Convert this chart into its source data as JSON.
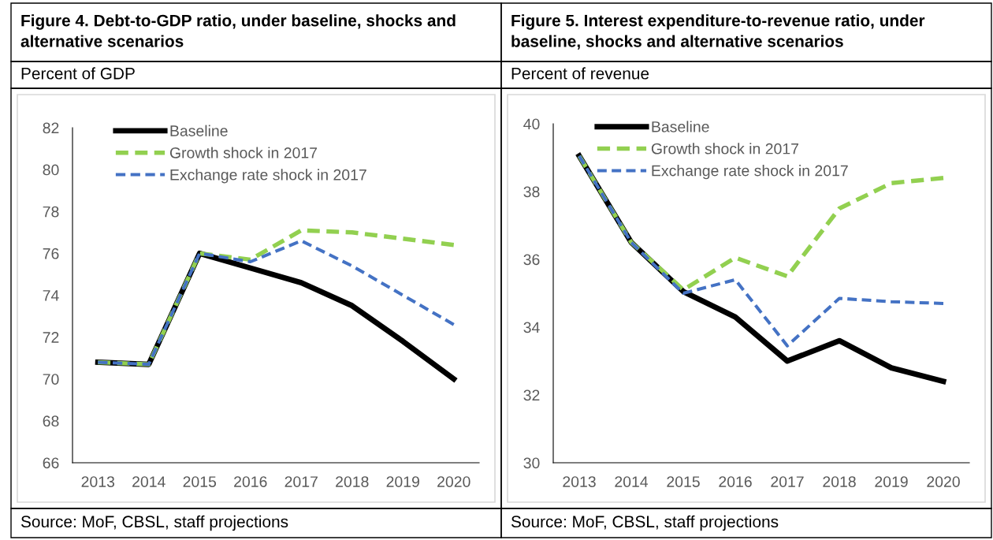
{
  "chart_data": [
    {
      "type": "line",
      "title": "Figure 4. Debt-to-GDP ratio, under baseline, shocks and alternative scenarios",
      "subtitle": "Percent of GDP",
      "categories": [
        "2013",
        "2014",
        "2015",
        "2016",
        "2017",
        "2018",
        "2019",
        "2020"
      ],
      "series": [
        {
          "name": "Baseline",
          "color": "#000000",
          "line_style": "solid",
          "values": [
            70.8,
            70.7,
            76.0,
            75.3,
            74.6,
            73.5,
            71.8,
            70.0
          ]
        },
        {
          "name": "Growth shock in 2017",
          "color": "#92d050",
          "line_style": "dashed",
          "values": [
            70.8,
            70.7,
            76.0,
            75.7,
            77.1,
            77.0,
            76.7,
            76.4
          ]
        },
        {
          "name": "Exchange rate shock in 2017",
          "color": "#4472c4",
          "line_style": "dashed",
          "values": [
            70.8,
            70.7,
            76.0,
            75.6,
            76.6,
            75.4,
            74.0,
            72.6
          ]
        }
      ],
      "ylim": [
        66,
        82
      ],
      "yticks": [
        66,
        68,
        70,
        72,
        74,
        76,
        78,
        80,
        82
      ],
      "legend": "top left",
      "grid": false,
      "annotations": [
        "Source: MoF, CBSL, staff projections"
      ]
    },
    {
      "type": "line",
      "title": "Figure 5. Interest expenditure-to-revenue ratio, under baseline, shocks and alternative scenarios",
      "subtitle": "Percent of revenue",
      "categories": [
        "2013",
        "2014",
        "2015",
        "2016",
        "2017",
        "2018",
        "2019",
        "2020"
      ],
      "series": [
        {
          "name": "Baseline",
          "color": "#000000",
          "line_style": "solid",
          "values": [
            39.05,
            36.5,
            35.05,
            34.3,
            33.0,
            33.6,
            32.8,
            32.4
          ]
        },
        {
          "name": "Growth shock in 2017",
          "color": "#92d050",
          "line_style": "dashed",
          "values": [
            39.05,
            36.5,
            35.1,
            36.05,
            35.5,
            37.5,
            38.25,
            38.4
          ]
        },
        {
          "name": "Exchange rate shock in 2017",
          "color": "#4472c4",
          "line_style": "dashed",
          "values": [
            39.05,
            36.5,
            35.0,
            35.4,
            33.45,
            34.85,
            34.75,
            34.7
          ]
        }
      ],
      "ylim": [
        30,
        40
      ],
      "yticks": [
        30,
        32,
        34,
        36,
        38,
        40
      ],
      "legend": "top left",
      "grid": false,
      "annotations": [
        "Source: MoF, CBSL, staff projections"
      ]
    }
  ]
}
